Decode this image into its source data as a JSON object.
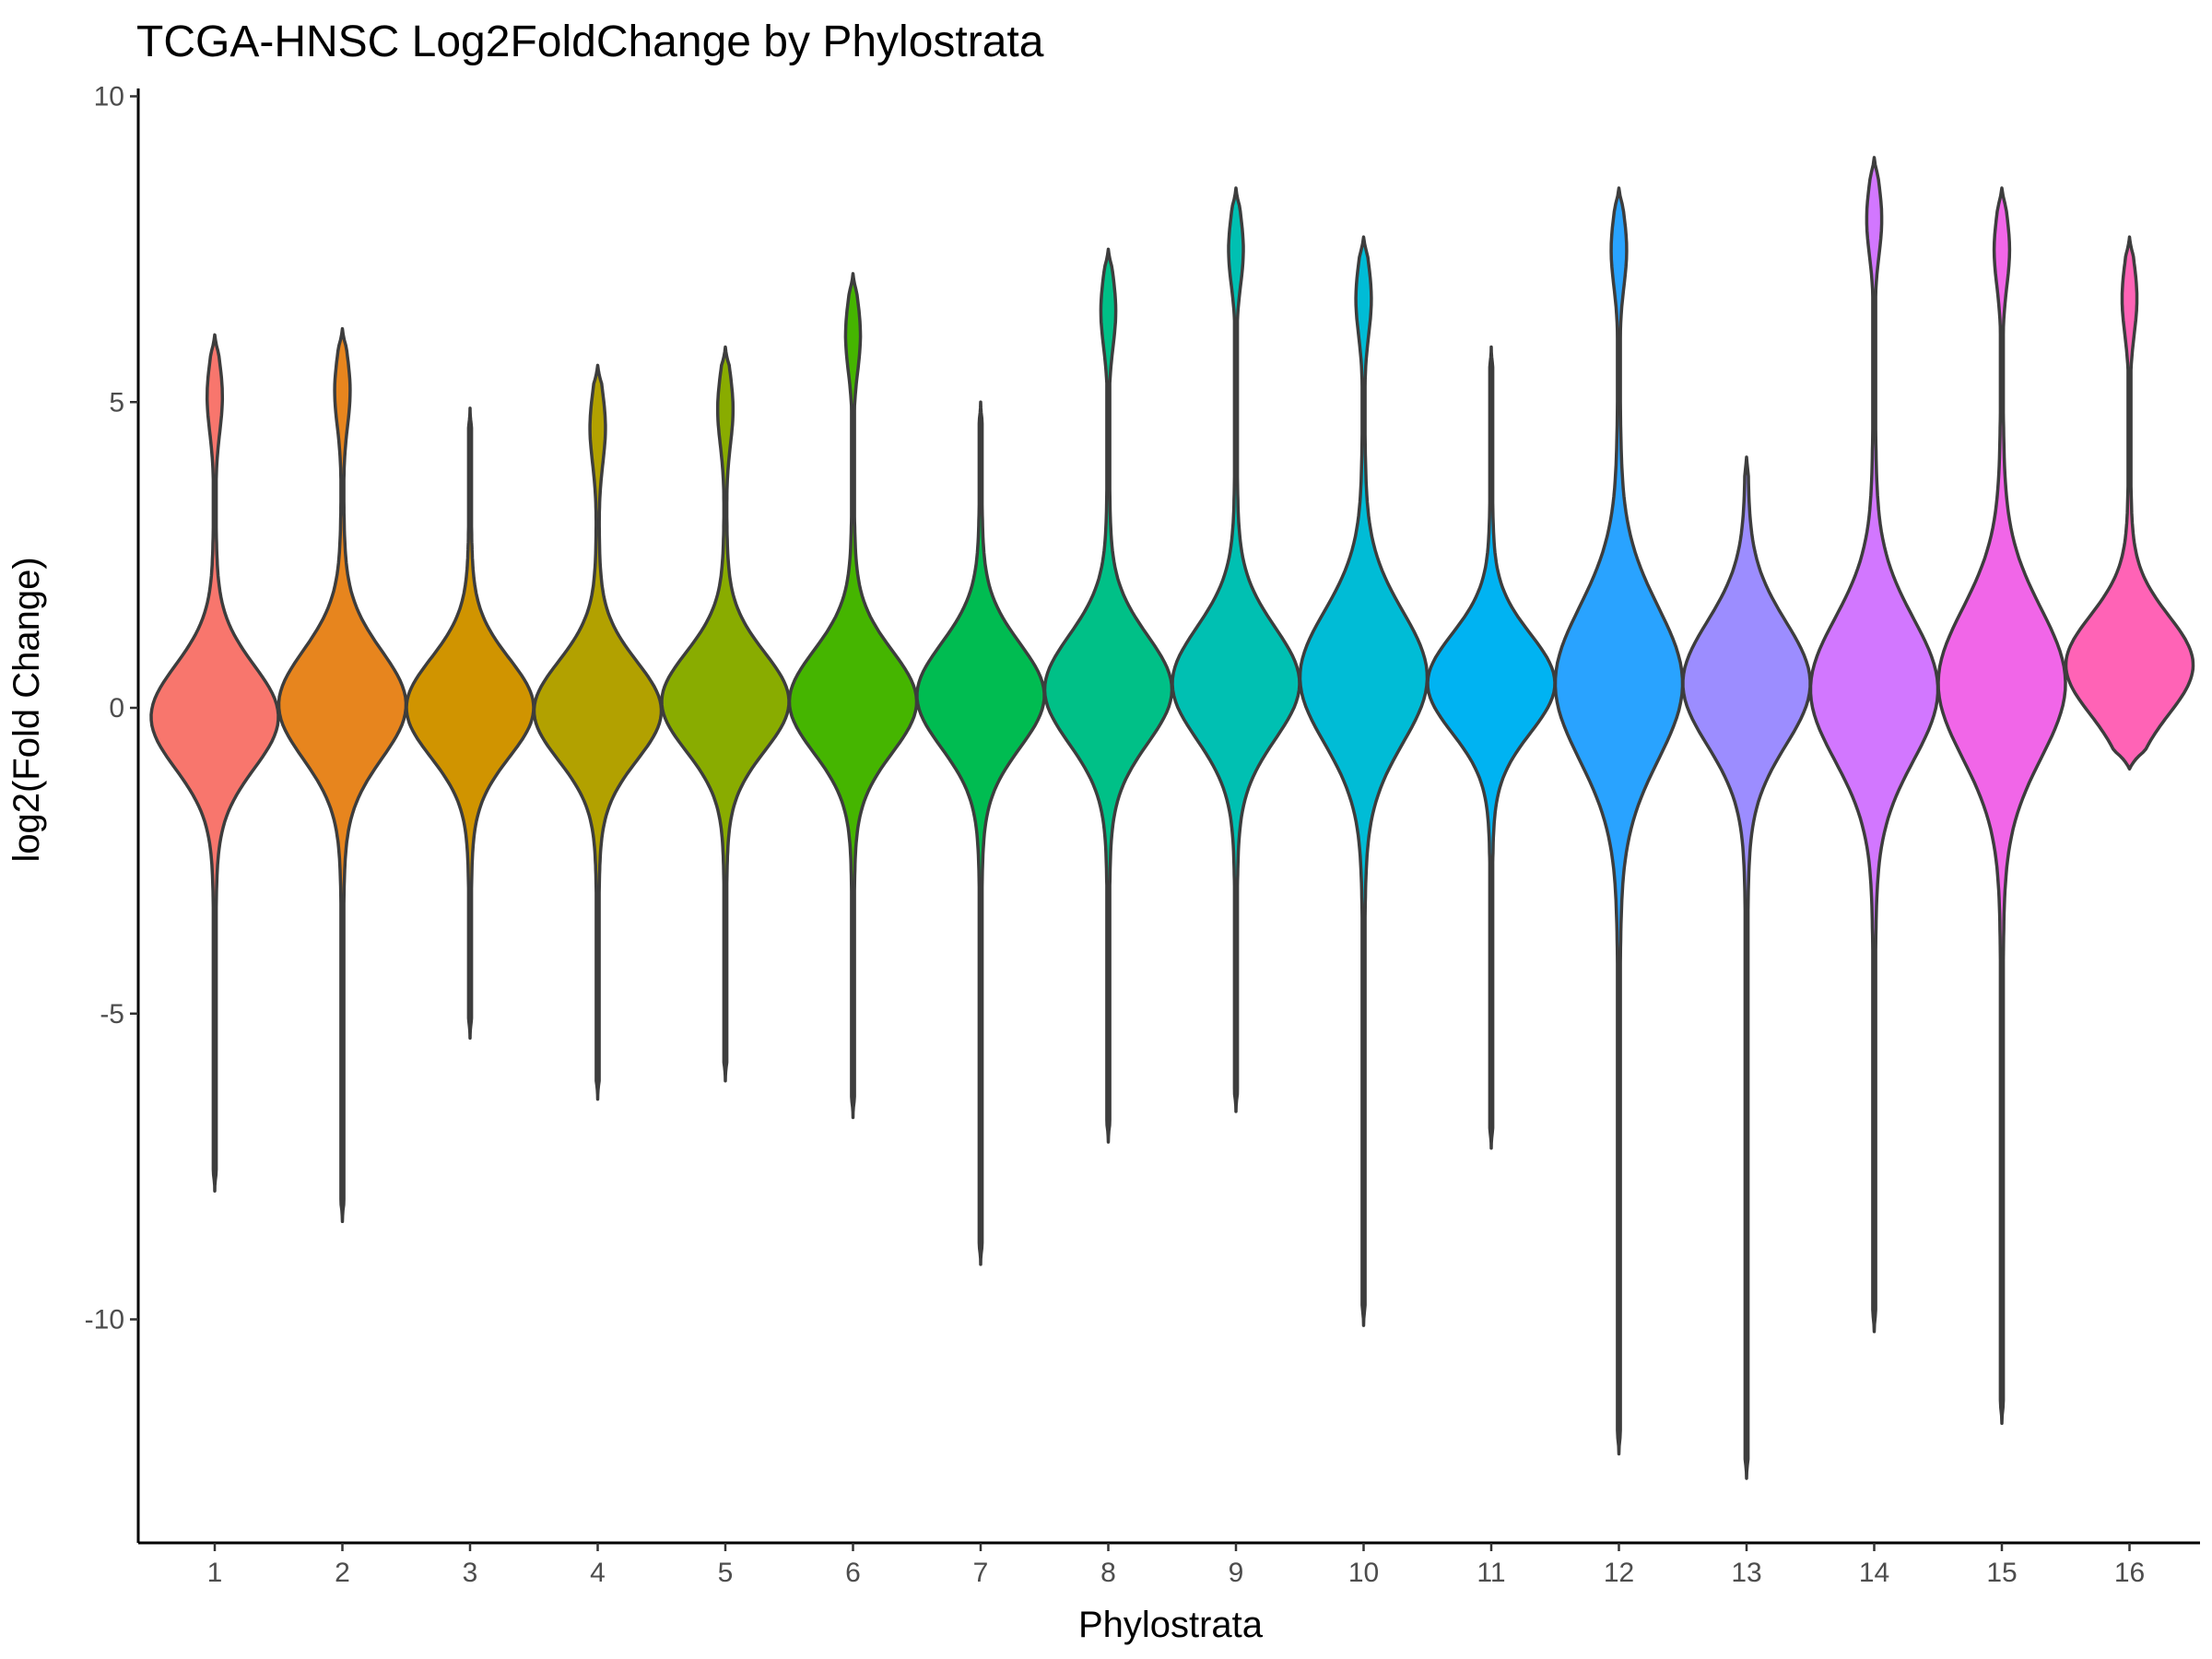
{
  "chart_data": {
    "type": "violin",
    "title": "TCGA-HNSC Log2FoldChange by Phylostrata",
    "xlabel": "Phylostrata",
    "ylabel": "log2(Fold Change)",
    "ylim": [
      -13.2,
      10.2
    ],
    "yticks": [
      -10,
      -5,
      0,
      5,
      10
    ],
    "grid": false,
    "legend": "none",
    "series": [
      {
        "category": "1",
        "color": "#F8766D",
        "min": -7.9,
        "max": 6.1,
        "mode": -0.15,
        "median": -0.1
      },
      {
        "category": "2",
        "color": "#E7851E",
        "min": -8.4,
        "max": 6.2,
        "mode": 0.05,
        "median": 0.0
      },
      {
        "category": "3",
        "color": "#D09400",
        "min": -5.4,
        "max": 4.9,
        "mode": 0.0,
        "median": 0.0
      },
      {
        "category": "4",
        "color": "#B2A100",
        "min": -6.4,
        "max": 5.6,
        "mode": -0.05,
        "median": 0.0
      },
      {
        "category": "5",
        "color": "#89AC00",
        "min": -6.1,
        "max": 5.9,
        "mode": 0.1,
        "median": 0.1
      },
      {
        "category": "6",
        "color": "#45B500",
        "min": -6.7,
        "max": 7.1,
        "mode": 0.1,
        "median": 0.1
      },
      {
        "category": "7",
        "color": "#00BC51",
        "min": -9.1,
        "max": 5.0,
        "mode": 0.2,
        "median": 0.1
      },
      {
        "category": "8",
        "color": "#00C087",
        "min": -7.1,
        "max": 7.5,
        "mode": 0.3,
        "median": 0.3
      },
      {
        "category": "9",
        "color": "#00C0B2",
        "min": -6.6,
        "max": 8.5,
        "mode": 0.4,
        "median": 0.3
      },
      {
        "category": "10",
        "color": "#00BCD6",
        "min": -10.1,
        "max": 7.7,
        "mode": 0.5,
        "median": 0.4
      },
      {
        "category": "11",
        "color": "#00B3F2",
        "min": -7.2,
        "max": 5.9,
        "mode": 0.4,
        "median": 0.4
      },
      {
        "category": "12",
        "color": "#29A3FF",
        "min": -12.2,
        "max": 8.5,
        "mode": 0.4,
        "median": 0.3
      },
      {
        "category": "13",
        "color": "#9C8DFF",
        "min": -12.6,
        "max": 4.1,
        "mode": 0.4,
        "median": 0.3
      },
      {
        "category": "14",
        "color": "#D277FF",
        "min": -10.2,
        "max": 9.0,
        "mode": 0.3,
        "median": 0.3
      },
      {
        "category": "15",
        "color": "#F166E8",
        "min": -11.7,
        "max": 8.5,
        "mode": 0.4,
        "median": 0.4
      },
      {
        "category": "16",
        "color": "#FF63B6",
        "min": -1.0,
        "max": 7.7,
        "mode": 0.7,
        "median": 0.8
      }
    ],
    "colors": {
      "axis": "#000000",
      "tick_label": "#4d4d4d",
      "outline": "#3d3d3d",
      "background": "#ffffff"
    }
  }
}
